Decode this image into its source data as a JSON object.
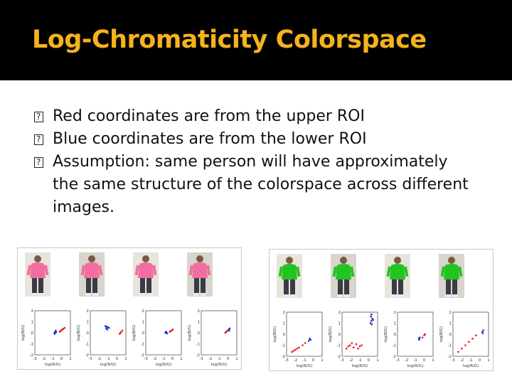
{
  "slide": {
    "title": "Log-Chromaticity Colorspace",
    "bullet_marker": "?",
    "bullets": [
      "Red coordinates are from the upper ROI",
      "Blue coordinates are from the lower ROI",
      "Assumption: same person will have approximately the same structure of the colorspace across different images."
    ],
    "colors": {
      "title_bar": "#000000",
      "title_text": "#f5b21c",
      "upper_roi_points": "#e01818",
      "lower_roi_points": "#1530c8"
    }
  },
  "figure": {
    "xlabel": "log(R/G)",
    "ylabel": "log(B/G)",
    "panels": [
      {
        "subject": "person in pink shirt",
        "photos": [
          "pink-shirt-person-1",
          "pink-shirt-person-2",
          "pink-shirt-person-3",
          "pink-shirt-person-4"
        ],
        "plots": [
          {
            "xticks": [
              "-3",
              "-2",
              "-1",
              "0",
              "1"
            ],
            "yticks": [
              "2",
              "1",
              "0",
              "-1",
              "-2"
            ]
          },
          {
            "xticks": [
              "-3",
              "-2",
              "-1",
              "0",
              "1"
            ],
            "yticks": [
              "2",
              "1",
              "0",
              "-1",
              "-2"
            ]
          },
          {
            "xticks": [
              "-3",
              "-2",
              "-1",
              "0",
              "1"
            ],
            "yticks": [
              "2",
              "1",
              "0",
              "-1",
              "-2"
            ]
          },
          {
            "xticks": [
              "-3",
              "-2",
              "-1",
              "0",
              "1"
            ],
            "yticks": [
              "2",
              "1",
              "0",
              "-1",
              "-2"
            ]
          }
        ]
      },
      {
        "subject": "person in green shirt",
        "photos": [
          "green-shirt-person-1",
          "green-shirt-person-2",
          "green-shirt-person-3",
          "green-shirt-person-4"
        ],
        "plots": [
          {
            "xticks": [
              "-3",
              "-2",
              "-1",
              "0",
              "1"
            ],
            "yticks": [
              "2",
              "1",
              "0",
              "-1",
              "-2"
            ]
          },
          {
            "xticks": [
              "-3",
              "-2",
              "-1",
              "0",
              "1"
            ],
            "yticks": [
              "2",
              "1",
              "0",
              "-1",
              "-2"
            ]
          },
          {
            "xticks": [
              "-3",
              "-2",
              "-1",
              "0",
              "1"
            ],
            "yticks": [
              "2",
              "1",
              "0",
              "-1",
              "-2"
            ]
          },
          {
            "xticks": [
              "-3",
              "-2",
              "-1",
              "0",
              "1"
            ],
            "yticks": [
              "2",
              "1",
              "0",
              "-1",
              "-2"
            ]
          }
        ]
      }
    ]
  },
  "chart_data": [
    {
      "type": "scatter",
      "xlim": [
        -3,
        1
      ],
      "ylim": [
        -2,
        2
      ],
      "series": [
        {
          "color": "#e01818",
          "points": [
            [
              -0.2,
              0.1
            ],
            [
              0.0,
              0.25
            ],
            [
              0.2,
              0.35
            ],
            [
              0.35,
              0.45
            ],
            [
              0.1,
              0.3
            ],
            [
              -0.1,
              0.15
            ]
          ]
        },
        {
          "color": "#1530c8",
          "points": [
            [
              -0.8,
              0.0
            ],
            [
              -0.7,
              0.1
            ],
            [
              -0.6,
              0.05
            ],
            [
              -0.75,
              -0.1
            ],
            [
              -0.65,
              0.2
            ]
          ]
        }
      ]
    },
    {
      "type": "scatter",
      "xlim": [
        -3,
        1
      ],
      "ylim": [
        -2,
        2
      ],
      "series": [
        {
          "color": "#e01818",
          "points": [
            [
              0.3,
              -0.1
            ],
            [
              0.45,
              0.05
            ],
            [
              0.6,
              0.2
            ],
            [
              0.4,
              0.0
            ]
          ]
        },
        {
          "color": "#1530c8",
          "points": [
            [
              -1.2,
              0.4
            ],
            [
              -1.0,
              0.5
            ],
            [
              -1.3,
              0.6
            ],
            [
              -1.1,
              0.3
            ],
            [
              -0.9,
              0.45
            ],
            [
              -1.15,
              0.55
            ]
          ]
        }
      ]
    },
    {
      "type": "scatter",
      "xlim": [
        -3,
        1
      ],
      "ylim": [
        -2,
        2
      ],
      "series": [
        {
          "color": "#e01818",
          "points": [
            [
              -0.3,
              0.1
            ],
            [
              -0.1,
              0.2
            ],
            [
              0.05,
              0.3
            ],
            [
              -0.2,
              0.15
            ]
          ]
        },
        {
          "color": "#1530c8",
          "points": [
            [
              -0.8,
              0.0
            ],
            [
              -0.7,
              0.1
            ],
            [
              -0.6,
              -0.05
            ],
            [
              -0.75,
              0.05
            ]
          ]
        }
      ]
    },
    {
      "type": "scatter",
      "xlim": [
        -3,
        1
      ],
      "ylim": [
        -2,
        2
      ],
      "series": [
        {
          "color": "#e01818",
          "points": [
            [
              -0.3,
              0.0
            ],
            [
              -0.1,
              0.15
            ],
            [
              0.05,
              0.25
            ],
            [
              -0.2,
              0.1
            ]
          ]
        },
        {
          "color": "#1530c8",
          "points": [
            [
              0.1,
              0.3
            ],
            [
              0.2,
              0.4
            ],
            [
              0.15,
              0.2
            ]
          ]
        }
      ]
    },
    {
      "type": "scatter",
      "xlim": [
        -3,
        1
      ],
      "ylim": [
        -2,
        2
      ],
      "series": [
        {
          "color": "#e01818",
          "points": [
            [
              -2.4,
              -1.6
            ],
            [
              -2.0,
              -1.4
            ],
            [
              -1.6,
              -1.2
            ],
            [
              -1.2,
              -1.0
            ],
            [
              -0.9,
              -0.8
            ],
            [
              -1.8,
              -1.3
            ],
            [
              -2.2,
              -1.5
            ]
          ]
        },
        {
          "color": "#1530c8",
          "points": [
            [
              -0.5,
              -0.6
            ],
            [
              -0.3,
              -0.5
            ],
            [
              -0.4,
              -0.4
            ]
          ]
        }
      ]
    },
    {
      "type": "scatter",
      "xlim": [
        -3,
        1
      ],
      "ylim": [
        -2,
        2
      ],
      "series": [
        {
          "color": "#e01818",
          "points": [
            [
              -2.5,
              -1.3
            ],
            [
              -2.1,
              -1.0
            ],
            [
              -1.7,
              -1.2
            ],
            [
              -1.4,
              -0.9
            ],
            [
              -1.0,
              -1.1
            ],
            [
              -1.9,
              -0.8
            ],
            [
              -2.3,
              -1.1
            ],
            [
              -1.2,
              -1.3
            ],
            [
              -0.8,
              -1.0
            ]
          ]
        },
        {
          "color": "#1530c8",
          "points": [
            [
              0.2,
              1.0
            ],
            [
              0.3,
              1.2
            ],
            [
              0.4,
              1.4
            ],
            [
              0.25,
              1.6
            ],
            [
              0.35,
              0.9
            ],
            [
              0.5,
              1.3
            ],
            [
              0.3,
              1.8
            ]
          ]
        }
      ]
    },
    {
      "type": "scatter",
      "xlim": [
        -3,
        1
      ],
      "ylim": [
        -2,
        2
      ],
      "series": [
        {
          "color": "#e01818",
          "points": [
            [
              -0.2,
              -0.3
            ],
            [
              0.0,
              -0.1
            ],
            [
              0.1,
              0.0
            ]
          ]
        },
        {
          "color": "#1530c8",
          "points": [
            [
              -0.6,
              -0.4
            ],
            [
              -0.5,
              -0.3
            ],
            [
              -0.55,
              -0.5
            ]
          ]
        }
      ]
    },
    {
      "type": "scatter",
      "xlim": [
        -3,
        1
      ],
      "ylim": [
        -2,
        2
      ],
      "series": [
        {
          "color": "#e01818",
          "points": [
            [
              -2.4,
              -1.6
            ],
            [
              -2.0,
              -1.3
            ],
            [
              -1.6,
              -1.0
            ],
            [
              -1.2,
              -0.7
            ],
            [
              -0.8,
              -0.4
            ],
            [
              -0.4,
              -0.1
            ]
          ]
        },
        {
          "color": "#1530c8",
          "points": [
            [
              0.3,
              0.2
            ],
            [
              0.4,
              0.35
            ],
            [
              0.35,
              0.1
            ]
          ]
        }
      ]
    }
  ]
}
